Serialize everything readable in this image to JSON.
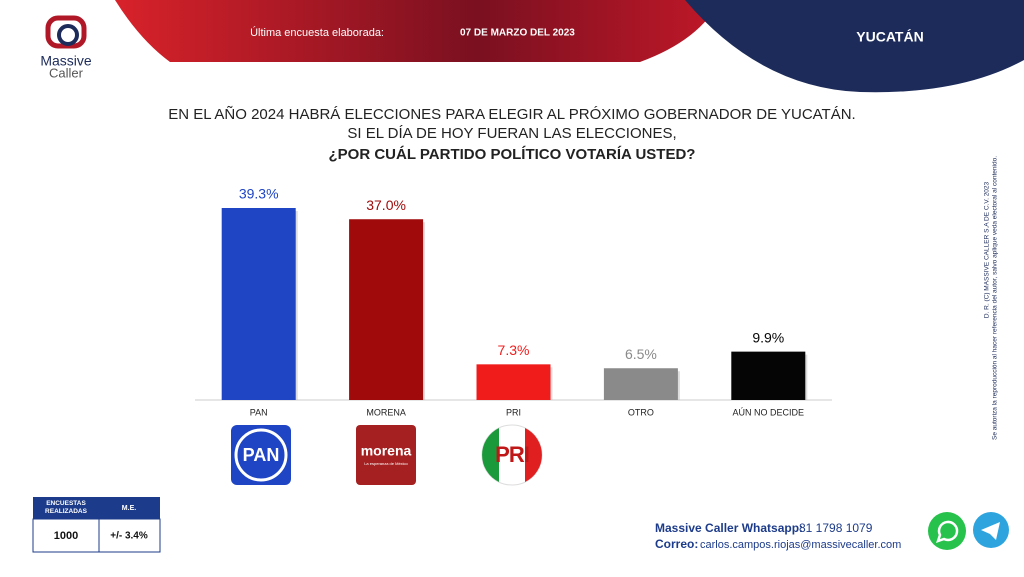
{
  "header": {
    "label": "Última encuesta elaborada:",
    "date": "07 DE MARZO DEL 2023",
    "region": "YUCATÁN"
  },
  "logo": {
    "line1": "Massive",
    "line2": "Caller"
  },
  "question": {
    "line1": "EN EL AÑO 2024 HABRÁ ELECCIONES PARA ELEGIR AL PRÓXIMO GOBERNADOR DE YUCATÁN.",
    "line2": "SI EL DÍA DE HOY FUERAN LAS ELECCIONES,",
    "line3": "¿POR CUÁL PARTIDO POLÍTICO VOTARÍA USTED?"
  },
  "chart_data": {
    "type": "bar",
    "categories": [
      "PAN",
      "MORENA",
      "PRI",
      "OTRO",
      "AÚN NO DECIDE"
    ],
    "values": [
      39.3,
      37.0,
      7.3,
      6.5,
      9.9
    ],
    "value_labels": [
      "39.3%",
      "37.0%",
      "7.3%",
      "6.5%",
      "9.9%"
    ],
    "colors": [
      "#1f45c4",
      "#a00a0a",
      "#f01c1c",
      "#8a8a8a",
      "#050505"
    ]
  },
  "party_logos": {
    "pan": "PAN",
    "morena": "morena",
    "morena_tagline": "La esperanza de México",
    "pri": "PRI"
  },
  "table": {
    "header": [
      "ENCUESTAS REALIZADAS",
      "M.E."
    ],
    "row": [
      "1000",
      "+/- 3.4%"
    ]
  },
  "contact": {
    "whatsapp_label": "Massive Caller Whatsapp:",
    "whatsapp": "81 1798 1079",
    "email_label": "Correo:",
    "email": "carlos.campos.riojas@massivecaller.com"
  },
  "sidebar": {
    "line1": "D. R. (C) MASSIVE CALLER S.A DE C.V. 2023",
    "line2": "Se autoriza la reproducción al hacer referencia del autor, salvo aplique veda electoral al contenido."
  }
}
